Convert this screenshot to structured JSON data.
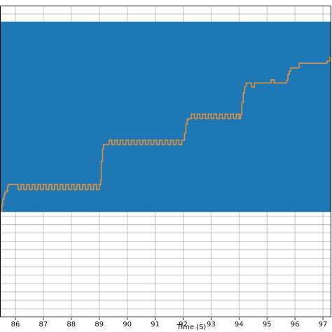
{
  "chart_data": {
    "type": "line",
    "title": "",
    "xlabel": "Time (S)",
    "ylabel": "",
    "xlim": [
      85.45,
      97.3
    ],
    "x_ticks": [
      86,
      87,
      88,
      89,
      90,
      91,
      92,
      93,
      94,
      95,
      96,
      97
    ],
    "ylim": [
      0,
      1
    ],
    "grid": true,
    "colors": {
      "band": "#1f77b4",
      "line": "#e0913f",
      "grid": "#b0b0b0"
    },
    "band": {
      "y_low": 0.3375,
      "y_high": 0.9485
    },
    "series": [
      {
        "x": [
          85.45,
          85.52,
          85.55,
          85.6,
          85.62,
          85.67,
          85.72,
          85.75,
          86.0,
          86.1,
          86.2,
          86.3,
          86.4,
          86.5,
          86.6,
          86.7,
          86.8,
          86.9,
          87.0,
          87.1,
          87.2,
          87.3,
          87.4,
          87.5,
          87.6,
          87.7,
          87.8,
          87.9,
          88.0,
          88.1,
          88.2,
          88.3,
          88.4,
          88.5,
          88.6,
          88.7,
          88.8,
          88.9,
          89.0,
          89.05,
          89.07,
          89.12,
          89.15,
          89.25,
          89.35,
          89.45,
          89.55,
          89.65,
          89.75,
          89.85,
          89.95,
          90.05,
          90.15,
          90.25,
          90.35,
          90.45,
          90.55,
          90.65,
          90.75,
          90.85,
          90.95,
          91.05,
          91.15,
          91.25,
          91.35,
          91.45,
          91.55,
          91.65,
          91.75,
          91.85,
          91.95,
          92.05,
          92.1,
          92.15,
          92.2,
          92.25,
          92.3,
          92.4,
          92.5,
          92.6,
          92.7,
          92.8,
          92.9,
          93.0,
          93.1,
          93.2,
          93.3,
          93.4,
          93.5,
          93.6,
          93.7,
          93.8,
          93.9,
          94.0,
          94.05,
          94.1,
          94.15,
          94.2,
          94.25,
          94.35,
          94.45,
          94.55,
          94.65,
          94.75,
          94.85,
          94.95,
          95.05,
          95.15,
          95.25,
          95.35,
          95.45,
          95.55,
          95.65,
          95.7,
          95.75,
          95.8,
          95.85,
          95.95,
          96.05,
          96.15,
          96.25,
          96.35,
          96.45,
          96.55,
          96.65,
          96.75,
          96.85,
          96.95,
          97.05,
          97.15,
          97.25,
          97.3
        ],
        "values": [
          0.34,
          0.36,
          0.38,
          0.39,
          0.4,
          0.405,
          0.42,
          0.426,
          0.426,
          0.41,
          0.426,
          0.41,
          0.426,
          0.41,
          0.426,
          0.41,
          0.426,
          0.41,
          0.426,
          0.41,
          0.426,
          0.41,
          0.426,
          0.41,
          0.426,
          0.41,
          0.426,
          0.41,
          0.426,
          0.41,
          0.426,
          0.41,
          0.426,
          0.41,
          0.426,
          0.41,
          0.426,
          0.41,
          0.426,
          0.44,
          0.5,
          0.54,
          0.554,
          0.554,
          0.568,
          0.554,
          0.568,
          0.554,
          0.568,
          0.554,
          0.568,
          0.554,
          0.568,
          0.554,
          0.568,
          0.554,
          0.568,
          0.554,
          0.568,
          0.554,
          0.568,
          0.554,
          0.568,
          0.554,
          0.568,
          0.554,
          0.568,
          0.554,
          0.568,
          0.554,
          0.568,
          0.59,
          0.62,
          0.635,
          0.637,
          0.637,
          0.652,
          0.637,
          0.652,
          0.637,
          0.652,
          0.637,
          0.652,
          0.637,
          0.652,
          0.637,
          0.652,
          0.637,
          0.652,
          0.637,
          0.652,
          0.637,
          0.652,
          0.637,
          0.65,
          0.69,
          0.72,
          0.74,
          0.752,
          0.752,
          0.738,
          0.752,
          0.752,
          0.752,
          0.752,
          0.752,
          0.752,
          0.762,
          0.752,
          0.752,
          0.752,
          0.752,
          0.752,
          0.76,
          0.78,
          0.79,
          0.8,
          0.8,
          0.8,
          0.815,
          0.815,
          0.815,
          0.815,
          0.815,
          0.815,
          0.815,
          0.815,
          0.815,
          0.815,
          0.822,
          0.835,
          0.84
        ]
      }
    ]
  }
}
